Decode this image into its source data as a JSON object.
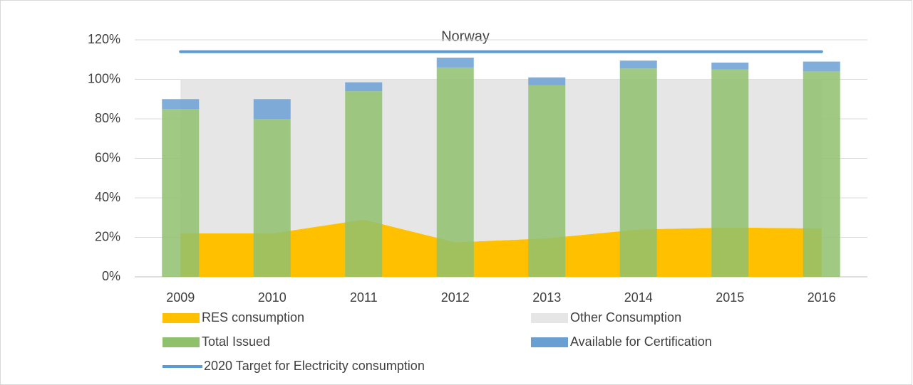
{
  "chart_data": {
    "type": "combo",
    "title": "Norway",
    "categories": [
      "2009",
      "2010",
      "2011",
      "2012",
      "2013",
      "2014",
      "2015",
      "2016"
    ],
    "series": [
      {
        "name": "RES consumption",
        "kind": "area",
        "color": "#ffc000",
        "values": [
          22,
          22,
          29,
          17.5,
          19.5,
          24,
          25,
          24.5
        ]
      },
      {
        "name": "Other Consumption",
        "kind": "area",
        "color": "#e7e6e6",
        "values": [
          78,
          78,
          71,
          82.5,
          80.5,
          76,
          75,
          75.5
        ]
      },
      {
        "name": "Total Issued",
        "kind": "bar",
        "color": "#8fc16d",
        "values": [
          85,
          80,
          94,
          106,
          97,
          105.5,
          105,
          104
        ]
      },
      {
        "name": "Available for Certification",
        "kind": "bar",
        "color": "#6a9fd2",
        "values": [
          5,
          10,
          4.5,
          5,
          4,
          4,
          3.5,
          5
        ]
      },
      {
        "name": "2020 Target for Electricity consumption",
        "kind": "line",
        "color": "#5b9bd5",
        "values": [
          114,
          114,
          114,
          114,
          114,
          114,
          114,
          114
        ]
      }
    ],
    "ylim": [
      0,
      120
    ],
    "yticks": [
      {
        "value": 0,
        "label": "0%"
      },
      {
        "value": 20,
        "label": "20%"
      },
      {
        "value": 40,
        "label": "40%"
      },
      {
        "value": 60,
        "label": "60%"
      },
      {
        "value": 80,
        "label": "80%"
      },
      {
        "value": 100,
        "label": "100%"
      },
      {
        "value": 120,
        "label": "120%"
      }
    ],
    "grid": true
  }
}
